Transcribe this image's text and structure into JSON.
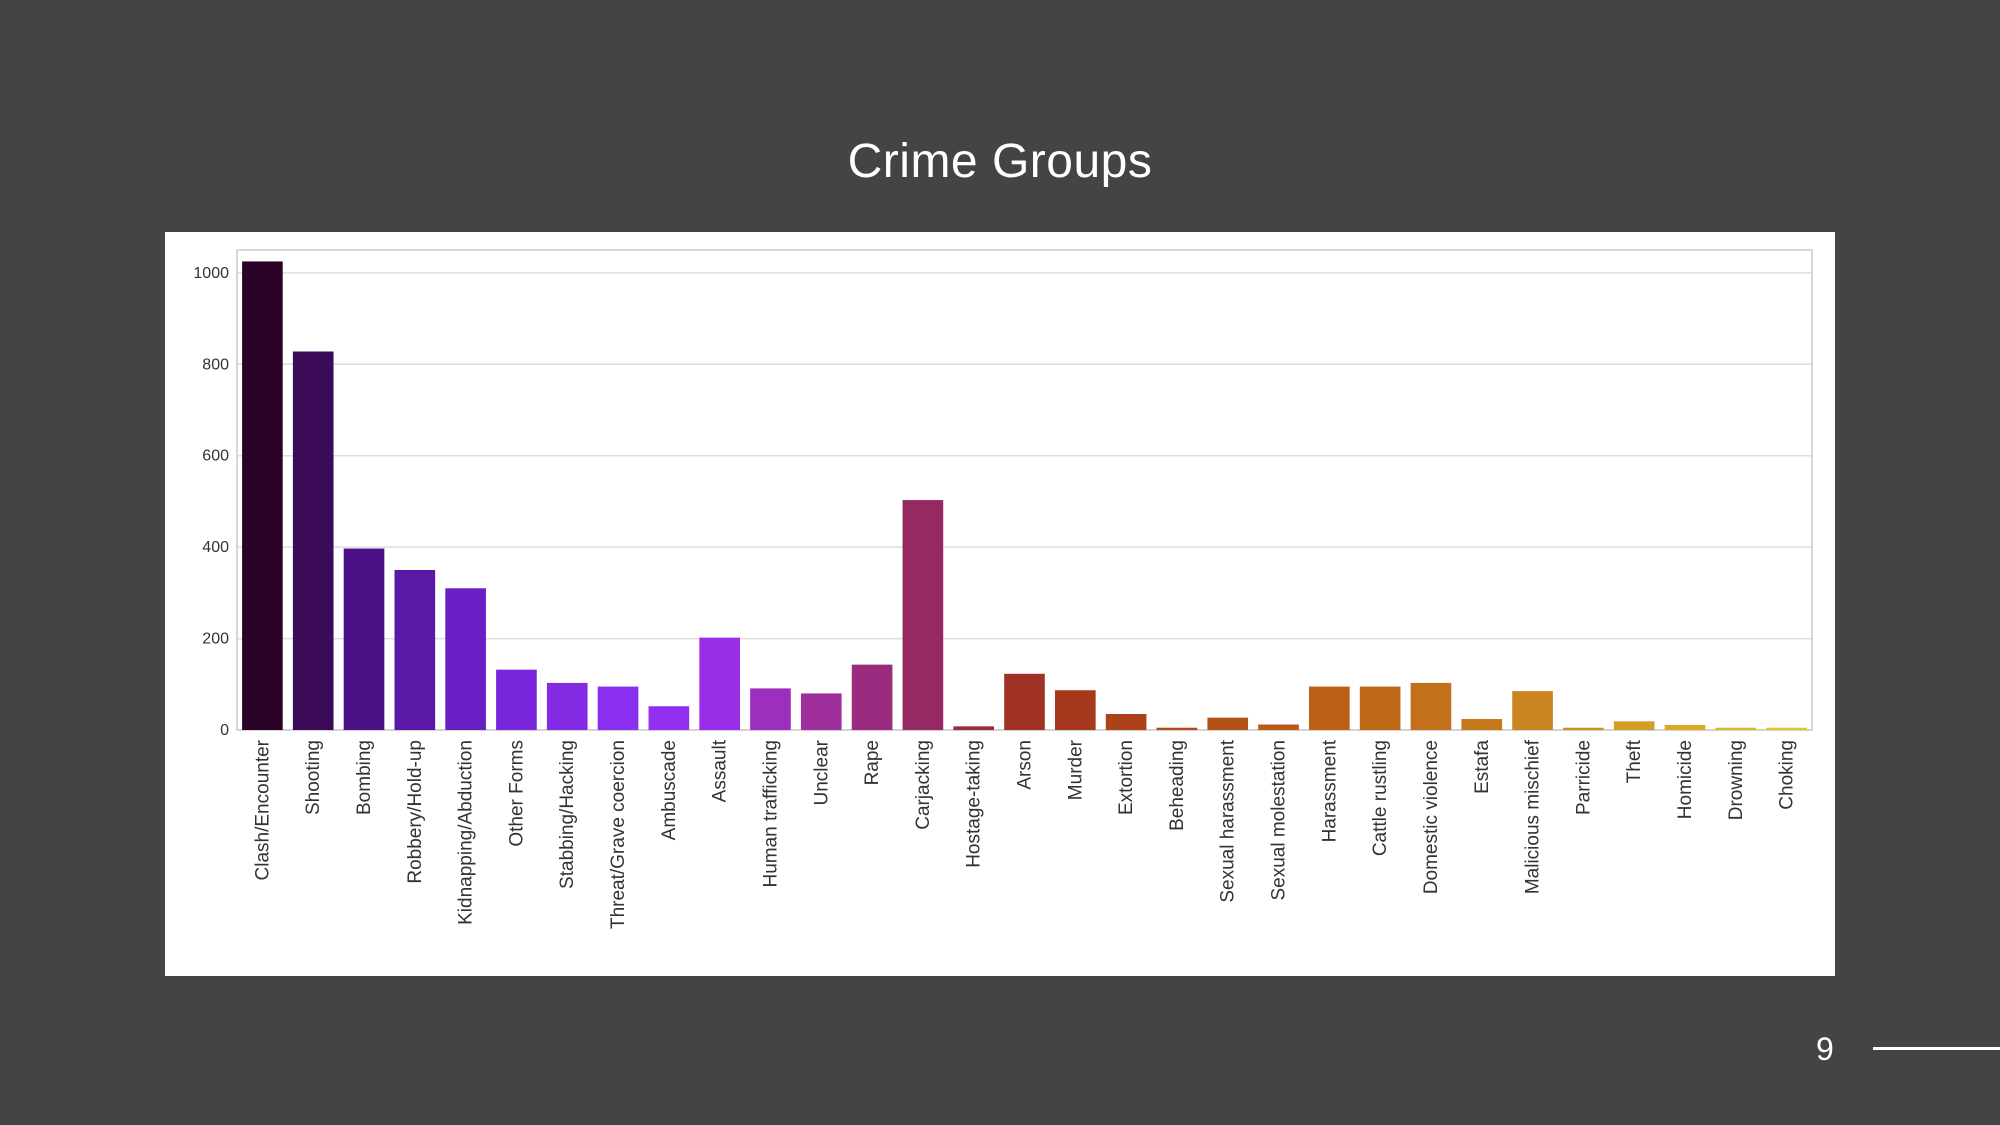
{
  "slide": {
    "title": "Crime Groups",
    "page_number": "9"
  },
  "colors": {
    "background": "#444444",
    "card": "#ffffff",
    "grid": "#dedede"
  },
  "chart_data": {
    "type": "bar",
    "title": "",
    "xlabel": "",
    "ylabel": "",
    "ylim": [
      0,
      1050
    ],
    "yticks": [
      0,
      200,
      400,
      600,
      800,
      1000
    ],
    "grid": true,
    "palette": "gnuplot",
    "categories": [
      "Clash/Encounter",
      "Shooting",
      "Bombing",
      "Robbery/Hold-up",
      "Kidnapping/Abduction",
      "Other Forms",
      "Stabbing/Hacking",
      "Threat/Grave coercion",
      "Ambuscade",
      "Assault",
      "Human trafficking",
      "Unclear",
      "Rape",
      "Carjacking",
      "Hostage-taking",
      "Arson",
      "Murder",
      "Extortion",
      "Beheading",
      "Sexual harassment",
      "Sexual molestation",
      "Harassment",
      "Cattle rustling",
      "Domestic violence",
      "Estafa",
      "Malicious mischief",
      "Parricide",
      "Theft",
      "Homicide",
      "Drowning",
      "Choking"
    ],
    "values": [
      1025,
      828,
      397,
      350,
      310,
      132,
      103,
      95,
      52,
      202,
      91,
      80,
      143,
      503,
      8,
      123,
      87,
      35,
      5,
      27,
      12,
      95,
      95,
      103,
      24,
      85,
      5,
      19,
      11,
      5,
      5
    ],
    "bar_colors": [
      "#2b0327",
      "#3c0b58",
      "#4c1285",
      "#5a18a7",
      "#6a1fc5",
      "#7a26dc",
      "#822be3",
      "#8a2ff0",
      "#922ff0",
      "#9a2ee6",
      "#9d2fbf",
      "#9e2f9d",
      "#9a2c7f",
      "#962962",
      "#9a2a40",
      "#a03225",
      "#a6391d",
      "#ac411a",
      "#b04a18",
      "#b45216",
      "#b85a15",
      "#bb6016",
      "#bf6818",
      "#c2701b",
      "#c6781d",
      "#ca8420",
      "#cf9022",
      "#d49d25",
      "#d8aa28",
      "#dcb82b",
      "#dfc52e"
    ]
  }
}
